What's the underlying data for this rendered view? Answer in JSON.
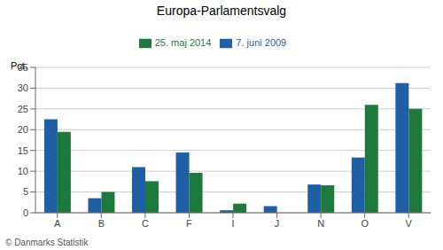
{
  "chart_data": {
    "type": "bar",
    "title": "Europa-Parlamentsvalg",
    "ylabel": "Pct.",
    "categories": [
      "A",
      "B",
      "C",
      "F",
      "I",
      "J",
      "N",
      "O",
      "V"
    ],
    "series": [
      {
        "name": "7. juni 2009",
        "color": "#1f5fa6",
        "values": [
          22.5,
          3.5,
          11.0,
          14.5,
          0.6,
          1.6,
          6.8,
          13.3,
          31.2
        ]
      },
      {
        "name": "25. maj 2014",
        "color": "#1e7a3c",
        "values": [
          19.5,
          5.0,
          7.6,
          9.6,
          2.2,
          0.0,
          6.6,
          26.0,
          25.0
        ]
      }
    ],
    "ylim": [
      0,
      35
    ],
    "yticks": [
      0,
      5,
      10,
      15,
      20,
      25,
      30,
      35
    ],
    "grid": true,
    "legend": "top",
    "annotations": [
      "© Danmarks Statistik"
    ]
  }
}
